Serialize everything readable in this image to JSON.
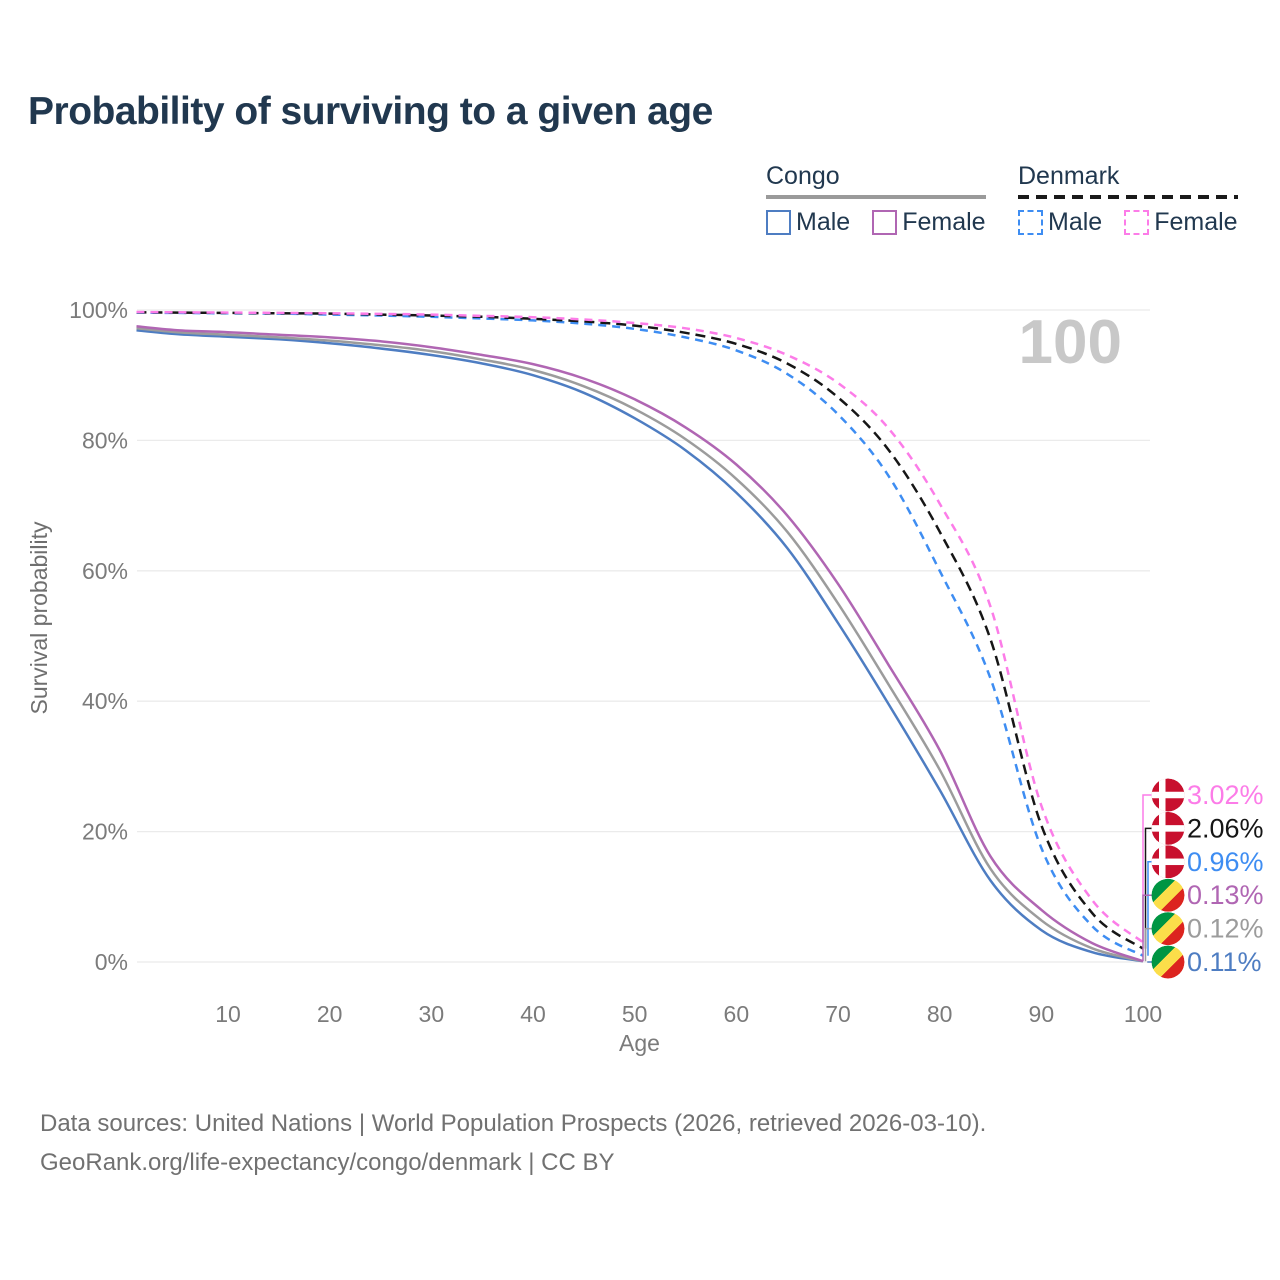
{
  "title": "Probability of surviving to a given age",
  "legend": {
    "groups": [
      {
        "title": "Congo",
        "underline_style": "solid",
        "underline_color": "#9a9a9a",
        "items": [
          {
            "label": "Male",
            "color": "#4e7dc2",
            "line_style": "solid"
          },
          {
            "label": "Female",
            "color": "#b066b3",
            "line_style": "solid"
          }
        ]
      },
      {
        "title": "Denmark",
        "underline_style": "dashed",
        "underline_color": "#1a1a1a",
        "items": [
          {
            "label": "Male",
            "color": "#3e8df2",
            "line_style": "dashed"
          },
          {
            "label": "Female",
            "color": "#fc7ce8",
            "line_style": "dashed"
          }
        ]
      }
    ]
  },
  "chart_data": {
    "type": "line",
    "title": "Probability of surviving to a given age",
    "xlabel": "Age",
    "ylabel": "Survival probability",
    "annotation": "100",
    "grid": true,
    "legend_position": "top-right",
    "xlim": [
      1,
      100
    ],
    "ylim": [
      0,
      100
    ],
    "x_ticks": [
      10,
      20,
      30,
      40,
      50,
      60,
      70,
      80,
      90,
      100
    ],
    "y_ticks": [
      {
        "value": 0,
        "label": "0%"
      },
      {
        "value": 20,
        "label": "20%"
      },
      {
        "value": 40,
        "label": "40%"
      },
      {
        "value": 60,
        "label": "60%"
      },
      {
        "value": 80,
        "label": "80%"
      },
      {
        "value": 100,
        "label": "100%"
      }
    ],
    "x": [
      1,
      5,
      10,
      15,
      20,
      25,
      30,
      35,
      40,
      45,
      50,
      55,
      60,
      65,
      70,
      75,
      80,
      85,
      90,
      95,
      100
    ],
    "series": [
      {
        "name": "Denmark Female",
        "country": "Denmark",
        "sex": "Female",
        "color": "#fc7ce8",
        "line_style": "dashed",
        "flag": "denmark",
        "end_label": "3.02%",
        "end_value": 3.02,
        "values": [
          99.7,
          99.65,
          99.6,
          99.55,
          99.5,
          99.4,
          99.3,
          99.1,
          98.9,
          98.55,
          98.0,
          97.2,
          95.7,
          93.1,
          88.8,
          81.8,
          70.3,
          54.5,
          24.0,
          9.5,
          3.02
        ]
      },
      {
        "name": "Denmark Both sexes",
        "country": "Denmark",
        "sex": "Both",
        "color": "#161616",
        "line_style": "dashed",
        "flag": "denmark",
        "end_label": "2.06%",
        "end_value": 2.06,
        "values": [
          99.65,
          99.6,
          99.55,
          99.5,
          99.45,
          99.3,
          99.15,
          98.95,
          98.65,
          98.25,
          97.6,
          96.5,
          94.8,
          91.8,
          86.6,
          78.5,
          66.0,
          49.5,
          21.0,
          7.5,
          2.06
        ]
      },
      {
        "name": "Denmark Male",
        "country": "Denmark",
        "sex": "Male",
        "color": "#3e8df2",
        "line_style": "dashed",
        "flag": "denmark",
        "end_label": "0.96%",
        "end_value": 0.96,
        "values": [
          99.6,
          99.55,
          99.5,
          99.45,
          99.3,
          99.15,
          98.95,
          98.7,
          98.4,
          97.9,
          97.1,
          95.8,
          93.8,
          90.2,
          84.0,
          74.5,
          60.0,
          43.5,
          17.5,
          5.5,
          0.96
        ]
      },
      {
        "name": "Congo Female",
        "country": "Congo",
        "sex": "Female",
        "color": "#b066b3",
        "line_style": "solid",
        "flag": "congo",
        "end_label": "0.13%",
        "end_value": 0.13,
        "values": [
          97.5,
          96.9,
          96.6,
          96.2,
          95.8,
          95.2,
          94.3,
          93.1,
          91.7,
          89.5,
          86.3,
          82.0,
          76.3,
          68.5,
          58.0,
          45.5,
          32.5,
          16.2,
          8.0,
          2.9,
          0.13
        ]
      },
      {
        "name": "Congo Both sexes",
        "country": "Congo",
        "sex": "Both",
        "color": "#9c9c9c",
        "line_style": "solid",
        "flag": "congo",
        "end_label": "0.12%",
        "end_value": 0.12,
        "values": [
          97.2,
          96.6,
          96.2,
          95.8,
          95.3,
          94.6,
          93.7,
          92.4,
          90.8,
          88.3,
          84.8,
          80.2,
          74.1,
          66.0,
          55.0,
          42.5,
          29.5,
          14.3,
          6.4,
          2.1,
          0.12
        ]
      },
      {
        "name": "Congo Male",
        "country": "Congo",
        "sex": "Male",
        "color": "#4e7dc2",
        "line_style": "solid",
        "flag": "congo",
        "end_label": "0.11%",
        "end_value": 0.11,
        "values": [
          96.9,
          96.3,
          95.9,
          95.5,
          94.9,
          94.1,
          93.1,
          91.8,
          90.0,
          87.3,
          83.4,
          78.5,
          72.0,
          63.5,
          52.0,
          39.5,
          26.4,
          12.5,
          4.9,
          1.5,
          0.11
        ]
      }
    ],
    "flag_colors": {
      "denmark_red": "#c8102e",
      "denmark_cross": "#ffffff",
      "congo_green": "#009543",
      "congo_yellow": "#fbde4a",
      "congo_red": "#dc241f"
    }
  },
  "style_colors": {
    "title_text": "#21384f",
    "axis_text": "#7b7b7b",
    "gridline": "#ebebeb",
    "annotation_text": "#c8c8c8",
    "footer_text": "#717171"
  },
  "footer": {
    "line1": "Data sources: United Nations | World Population Prospects (2026, retrieved 2026-03-10).",
    "line2": "GeoRank.org/life-expectancy/congo/denmark | CC BY"
  }
}
